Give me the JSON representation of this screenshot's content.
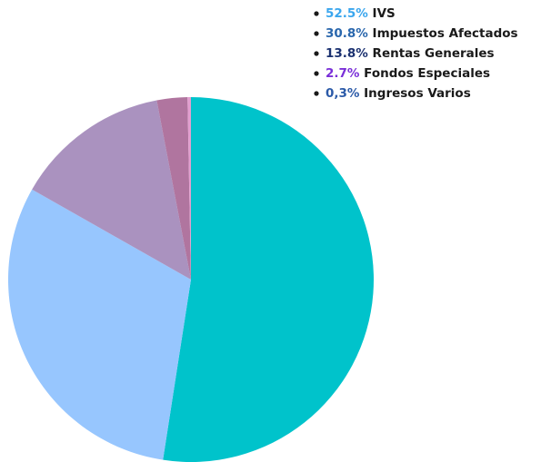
{
  "chart_data": {
    "type": "pie",
    "categories": [
      "IVS",
      "Impuestos Afectados",
      "Rentas Generales",
      "Fondos Especiales",
      "Ingresos Varios"
    ],
    "values": [
      52.5,
      30.8,
      13.8,
      2.7,
      0.3
    ],
    "value_labels": [
      "52.5%",
      "30.8%",
      "13.8%",
      "2.7%",
      "0,3%"
    ],
    "colors": [
      "#00c3cb",
      "#97c6fe",
      "#aa92bf",
      "#b0759f",
      "#e29fcf"
    ],
    "label_colors": [
      "#3aa6ee",
      "#2a67ad",
      "#1b3170",
      "#7a2fd8",
      "#2b5aa8"
    ],
    "legend": "top-right"
  }
}
